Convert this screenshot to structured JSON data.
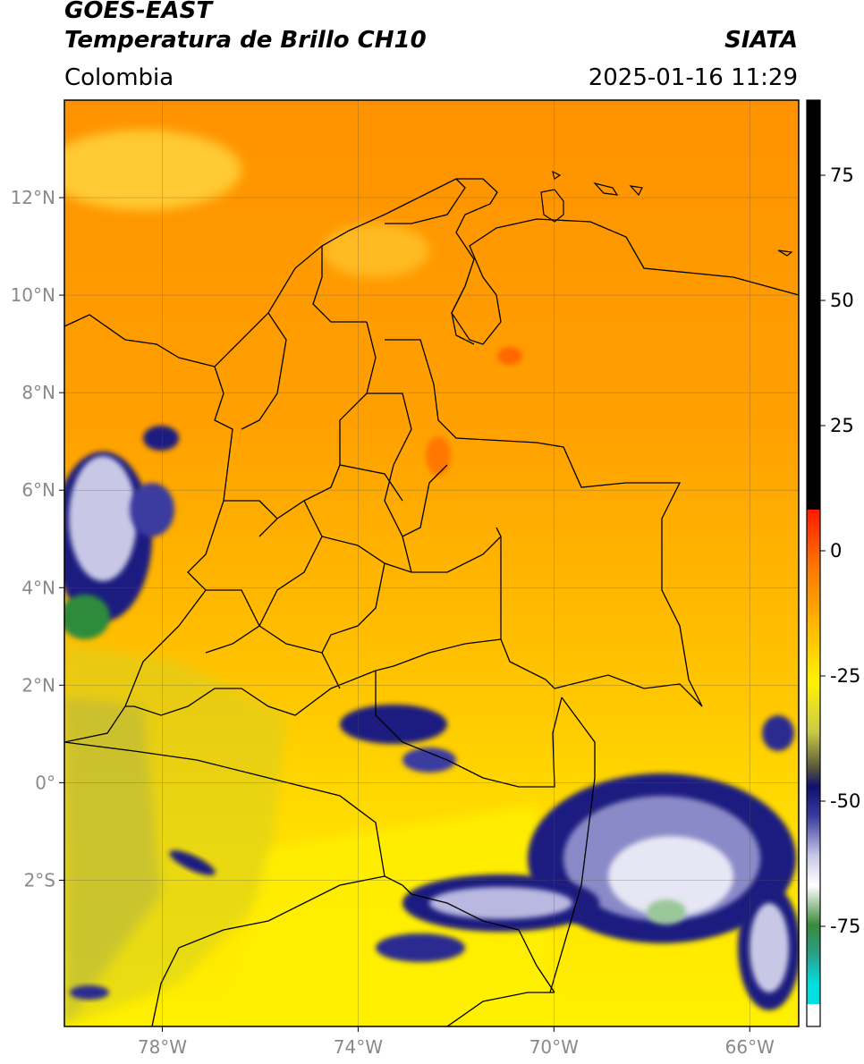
{
  "header": {
    "satellite": "GOES-EAST",
    "product": "Temperatura de Brillo CH10",
    "organization": "SIATA",
    "region": "Colombia",
    "timestamp": "2025-01-16 11:29"
  },
  "map": {
    "lon_range": [
      -80,
      -65
    ],
    "lat_range": [
      -5,
      14
    ],
    "lon_ticks": [
      {
        "value": -78,
        "label": "78°W"
      },
      {
        "value": -74,
        "label": "74°W"
      },
      {
        "value": -70,
        "label": "70°W"
      },
      {
        "value": -66,
        "label": "66°W"
      }
    ],
    "lat_ticks": [
      {
        "value": 12,
        "label": "12°N"
      },
      {
        "value": 10,
        "label": "10°N"
      },
      {
        "value": 8,
        "label": "8°N"
      },
      {
        "value": 6,
        "label": "6°N"
      },
      {
        "value": 4,
        "label": "4°N"
      },
      {
        "value": 2,
        "label": "2°N"
      },
      {
        "value": 0,
        "label": "0°"
      },
      {
        "value": -2,
        "label": "2°S"
      }
    ],
    "gridlines": true
  },
  "colorbar": {
    "range": [
      -95,
      90
    ],
    "ticks": [
      {
        "value": 75,
        "label": "75"
      },
      {
        "value": 50,
        "label": "50"
      },
      {
        "value": 25,
        "label": "25"
      },
      {
        "value": 0,
        "label": "0"
      },
      {
        "value": -25,
        "label": "-25"
      },
      {
        "value": -50,
        "label": "-50"
      },
      {
        "value": -75,
        "label": "-75"
      }
    ],
    "colors": {
      "black": "#000000",
      "red": "#ff1a00",
      "orange": "#ff9a00",
      "yellow": "#fff200",
      "olive": "#b5b53a",
      "navy": "#1a1a80",
      "white": "#ffffff",
      "green": "#2e8b3a",
      "cyan": "#00d6d6"
    }
  }
}
